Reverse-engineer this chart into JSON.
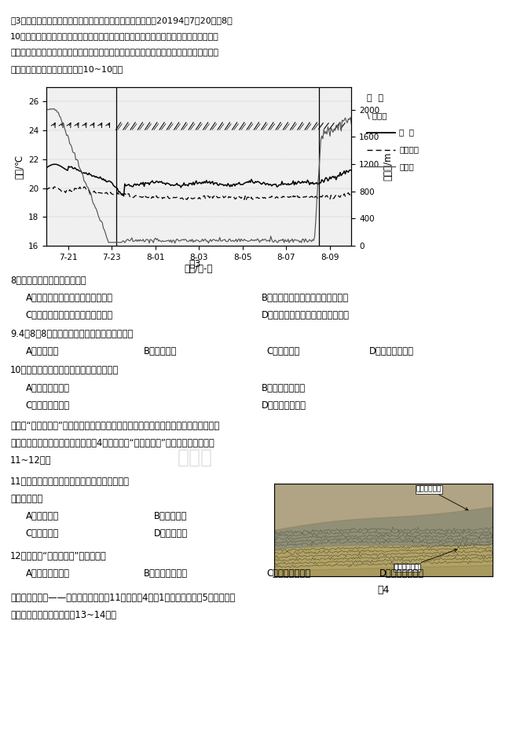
{
  "title_text": "图3示意厦门市滨海地区某气象站（该气象站东南临海）记录的20194月7日20时至8日",
  "title_text2": "10时气温、露点温度、近地面平均风向与风力、能见度气象数据。在此期间该地有一次明",
  "title_text3": "显的海雾过程。露点温度是空气在所含水汽量不变的情况下，通过冷却降温达到饱和状态凝",
  "title_text4": "结成液态水时的温度。据此完戕10~10题。",
  "fig3_label": "图3",
  "left_ylabel": "温度/℃",
  "right_ylabel": "能见度/m",
  "xlabel": "时间/日-时",
  "yticks_left": [
    16,
    18,
    20,
    22,
    24,
    26
  ],
  "yticks_right": [
    0,
    400,
    800,
    1200,
    1600,
    2000
  ],
  "xtick_labels": [
    "7-21",
    "7-23",
    "8-01",
    "8-03",
    "8-05",
    "8-07",
    "8-09"
  ],
  "legend_title": "图  例",
  "legend_items": [
    "风向标",
    "气  温",
    "露点温度",
    "能见度"
  ],
  "q8_text": "8．此次海雾形成的主要原因是",
  "q8_A": "A．地面辐射冷却使近地面水汽凝结",
  "q8_B": "B．西北风过境使海洋暖湿气流抬升",
  "q8_C": "C．偏东冷湿气流流经沿岸暖水区域",
  "q8_D": "D．偏南暖湿气流流经沿岸冷水区域",
  "q9_text": "9.4月8日8时后该地能见度快速上升主要是因为",
  "q9_A": "A．风向改变",
  "q9_B": "B．风速改变",
  "q9_C": "C．气温升高",
  "q9_D": "D．露点温度升高",
  "q10_text": "10．此次海雾无法深入内陆的原因可能是。",
  "q10_A": "A．海雾水汽不足",
  "q10_B": "B．受到陆风阻碍",
  "q10_C": "C．海陆温差较小",
  "q10_D": "D．陆地气温较高",
  "para2_text": "萨多纳“构造竞技场”地处瑞士东部的阿尔卑斯山区，实地考察可见较老的三叠纪泥灰岩",
  "para2_text2": "叠加在较新的依罗纪石灰岩之上。图4示意萨多纳“构造竞技场”某地景观。据此完成",
  "para2_text3": "11~12题。",
  "q11_text": "11．三叠纪泥灰岩叠加在依罗纪石灰岩之上，主",
  "q11_text2": "要是其经历了",
  "q11_A": "A．变质作用",
  "q11_B": "B．沉积作用",
  "q11_C": "C．断裂位移",
  "q11_D": "D．水平拉张",
  "q12_text": "12．萨多纳“构造竞技场”形成后当地",
  "q12_A": "A．地壳厕度增大",
  "q12_B": "B．沉积作用明显",
  "q12_C": "C．水平拉张剧烈",
  "q12_D": "D．岩层密度减小",
  "para3_text": "对马暖流的分支——黄海暖流只出现在11月一次年4月，1月势力最强。图5示意东亚部",
  "para3_text2": "分海域海水运动。据此完戕13~14题。",
  "fig4_label": "图4",
  "fig4_label1": "三叠纪泥灰岩",
  "fig4_label2": "依罗纪石灰岩",
  "background_color": "#ffffff",
  "text_color": "#000000",
  "chart_bg": "#f5f5f5"
}
